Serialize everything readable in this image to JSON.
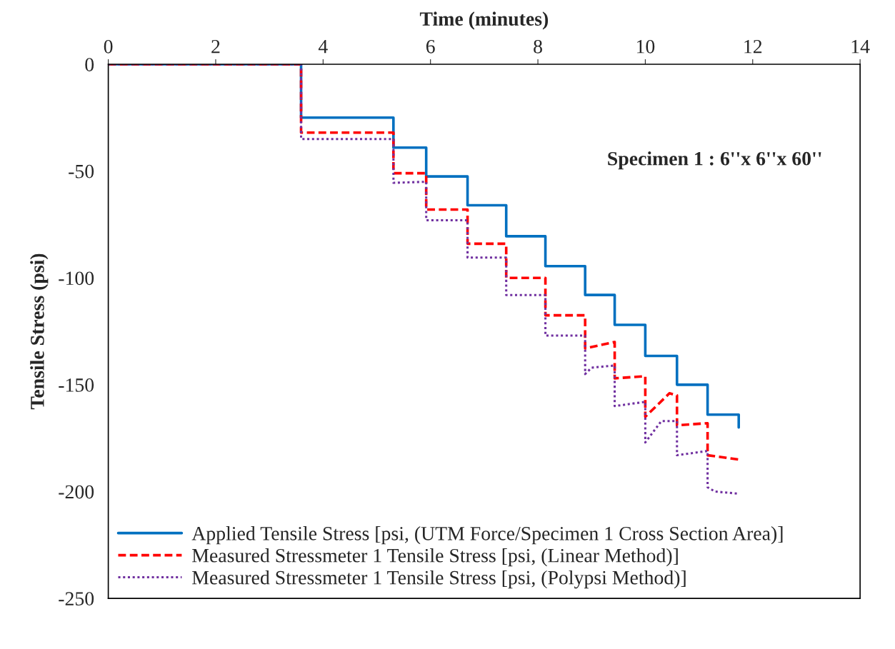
{
  "chart_data": {
    "type": "line",
    "xlabel": "Time (minutes)",
    "ylabel": "Tensile Stress (psi)",
    "xlim": [
      0,
      14
    ],
    "xticks": [
      0,
      2,
      4,
      6,
      8,
      10,
      12,
      14
    ],
    "ylim": [
      -250,
      0
    ],
    "yticks": [
      -250,
      -200,
      -150,
      -100,
      -50,
      0
    ],
    "grid": false,
    "legend": "bottom left",
    "annotations": [
      "Specimen 1 : 6''x 6''x 60''"
    ],
    "series": [
      {
        "name": "Applied Tensile Stress [psi, (UTM Force/Specimen 1 Cross Section Area)]",
        "color": "#0070c0",
        "line_style": "solid",
        "x": [
          0,
          3.59,
          3.59,
          5.31,
          5.31,
          5.92,
          5.92,
          6.69,
          6.69,
          7.41,
          7.41,
          8.14,
          8.14,
          8.88,
          8.88,
          9.43,
          9.43,
          10.0,
          10.0,
          10.59,
          10.59,
          11.16,
          11.16,
          11.74,
          11.74
        ],
        "values": [
          0,
          0,
          -25,
          -25,
          -39,
          -39,
          -52.5,
          -52.5,
          -66,
          -66,
          -80.5,
          -80.5,
          -94.5,
          -94.5,
          -108,
          -108,
          -122,
          -122,
          -136.5,
          -136.5,
          -150,
          -150,
          -164,
          -164,
          -170
        ]
      },
      {
        "name": "Measured Stressmeter 1 Tensile Stress [psi, (Linear Method)]",
        "color": "#ff0000",
        "line_style": "dashed",
        "x": [
          0,
          3.59,
          3.59,
          5.31,
          5.31,
          5.92,
          5.92,
          6.69,
          6.69,
          7.41,
          7.41,
          8.14,
          8.14,
          8.88,
          8.88,
          9.43,
          9.43,
          10.0,
          10.0,
          10.45,
          10.59,
          10.59,
          11.16,
          11.16,
          11.74
        ],
        "values": [
          0,
          0,
          -32,
          -32,
          -51,
          -51,
          -68,
          -68,
          -84,
          -84,
          -100,
          -100,
          -117.5,
          -117.5,
          -133,
          -130,
          -147,
          -146,
          -165,
          -154,
          -155,
          -169,
          -168,
          -183,
          -185
        ]
      },
      {
        "name": "Measured Stressmeter 1 Tensile Stress [psi, (Polypsi Method)]",
        "color": "#7030a0",
        "line_style": "dotted",
        "x": [
          0,
          3.59,
          3.59,
          5.31,
          5.31,
          5.92,
          5.92,
          6.69,
          6.69,
          7.41,
          7.41,
          8.14,
          8.14,
          8.88,
          8.88,
          9.0,
          9.43,
          9.43,
          10.0,
          10.0,
          10.3,
          10.59,
          10.59,
          11.16,
          11.16,
          11.3,
          11.74
        ],
        "values": [
          0,
          0,
          -35,
          -35,
          -55.5,
          -55,
          -73,
          -73,
          -90.5,
          -90.5,
          -108,
          -108,
          -127,
          -127,
          -145,
          -142,
          -141,
          -160,
          -158,
          -177,
          -167,
          -167,
          -183,
          -181,
          -198,
          -200,
          -201
        ]
      }
    ]
  }
}
